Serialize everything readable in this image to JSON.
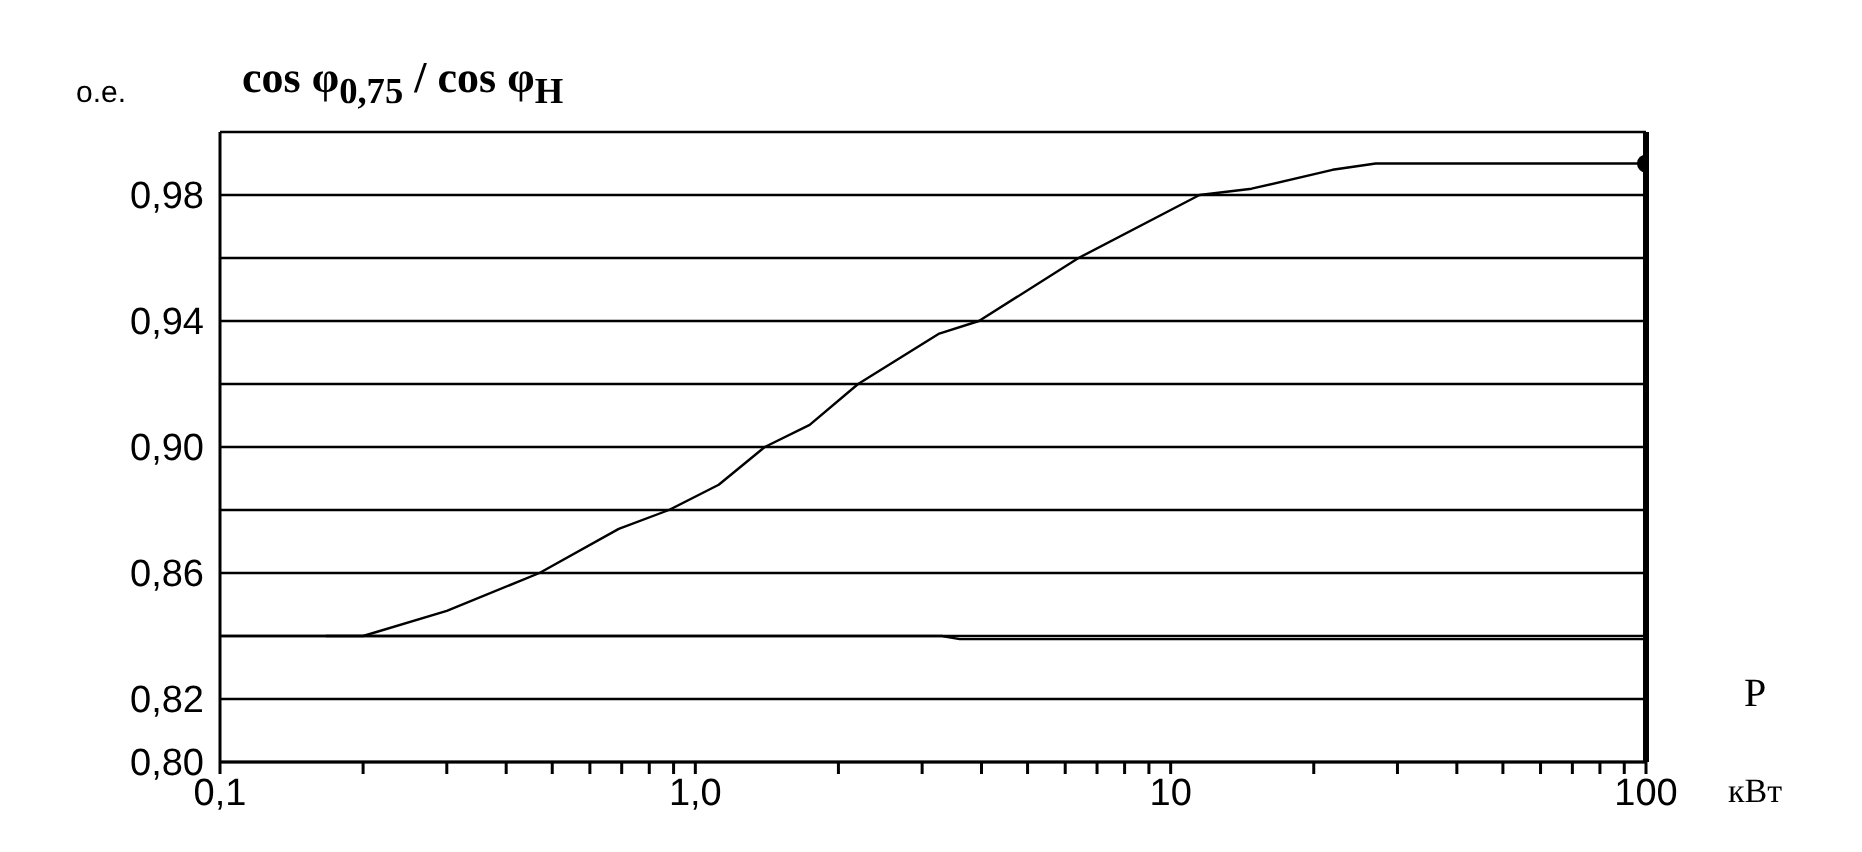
{
  "chart_data": {
    "type": "line",
    "title": "cos φ$_{0,75}$ / cos φ$_{Н}$",
    "ylabel": "о.е.",
    "xlabel": "кВт",
    "annotations": [
      "P"
    ],
    "log": "x",
    "grid": "y",
    "marker": "none",
    "line_style": "solid",
    "xlim": [
      0.1,
      100
    ],
    "xticks": [
      {
        "value": 0.1,
        "label": "0,1"
      },
      {
        "value": 0.2,
        "label": null
      },
      {
        "value": 0.3,
        "label": null
      },
      {
        "value": 0.4,
        "label": null
      },
      {
        "value": 0.5,
        "label": null
      },
      {
        "value": 0.6,
        "label": null
      },
      {
        "value": 0.7,
        "label": null
      },
      {
        "value": 0.8,
        "label": null
      },
      {
        "value": 0.9,
        "label": null
      },
      {
        "value": 1,
        "label": "1,0"
      },
      {
        "value": 2,
        "label": null
      },
      {
        "value": 3,
        "label": null
      },
      {
        "value": 4,
        "label": null
      },
      {
        "value": 5,
        "label": null
      },
      {
        "value": 6,
        "label": null
      },
      {
        "value": 7,
        "label": null
      },
      {
        "value": 8,
        "label": null
      },
      {
        "value": 9,
        "label": null
      },
      10,
      {
        "value": 20,
        "label": null
      },
      {
        "value": 30,
        "label": null
      },
      {
        "value": 40,
        "label": null
      },
      {
        "value": 50,
        "label": null
      },
      {
        "value": 60,
        "label": null
      },
      {
        "value": 70,
        "label": null
      },
      {
        "value": 80,
        "label": null
      },
      {
        "value": 90,
        "label": null
      },
      100
    ],
    "ylim": [
      0.8,
      1.0
    ],
    "yticks": [
      {
        "value": 0.8,
        "label": "0,80"
      },
      {
        "value": 0.82,
        "label": "0,82"
      },
      {
        "value": 0.84,
        "label": null
      },
      {
        "value": 0.86,
        "label": "0,86"
      },
      {
        "value": 0.88,
        "label": null
      },
      {
        "value": 0.9,
        "label": "0,90"
      },
      {
        "value": 0.92,
        "label": null
      },
      {
        "value": 0.94,
        "label": "0,94"
      },
      {
        "value": 0.96,
        "label": null
      },
      {
        "value": 0.98,
        "label": "0,98"
      },
      {
        "value": 1.0,
        "label": null
      }
    ],
    "ref_lines": [
      {
        "axis": "x",
        "value": 100,
        "color": "#000000"
      }
    ],
    "series": [
      {
        "color": "#000000",
        "x": [
          0.167,
          0.2,
          0.3,
          0.47,
          0.69,
          0.88,
          1.12,
          1.4,
          1.74,
          2.2,
          3.26,
          3.95,
          6.4,
          11.5,
          14.8,
          21.9,
          27,
          100
        ],
        "values": [
          0.84,
          0.84,
          0.848,
          0.86,
          0.874,
          0.88,
          0.888,
          0.9,
          0.907,
          0.92,
          0.936,
          0.94,
          0.96,
          0.98,
          0.982,
          0.988,
          0.99,
          0.99
        ]
      },
      {
        "color": "#000000",
        "x": [
          0.1,
          3.3,
          3.6,
          100
        ],
        "values": [
          0.84,
          0.84,
          0.839,
          0.839
        ]
      },
      {
        "type": "scatter",
        "color": "#000000",
        "marker": "circle",
        "x": [
          100
        ],
        "values": [
          0.99
        ]
      }
    ]
  }
}
